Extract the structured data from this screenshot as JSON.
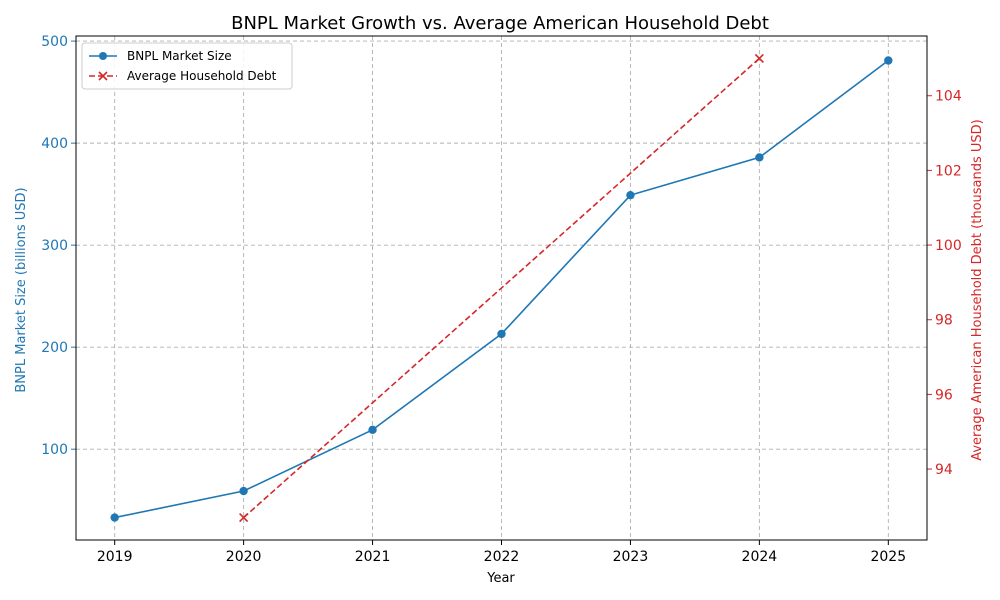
{
  "chart_data": {
    "type": "line",
    "title": "BNPL Market Growth vs. Average American Household Debt",
    "xlabel": "Year",
    "x": [
      2019,
      2020,
      2021,
      2022,
      2023,
      2024,
      2025
    ],
    "xlim": [
      2018.7,
      2025.3
    ],
    "grid": true,
    "legend_position": "top-left",
    "y_left": {
      "label": "BNPL Market Size (billions USD)",
      "color": "#1f77b4",
      "lim": [
        11,
        505
      ],
      "ticks": [
        100,
        200,
        300,
        400,
        500
      ]
    },
    "y_right": {
      "label": "Average American Household Debt (thousands USD)",
      "color": "#d62728",
      "lim": [
        92.1,
        105.6
      ],
      "ticks": [
        94,
        96,
        98,
        100,
        102,
        104
      ]
    },
    "series": [
      {
        "name": "BNPL Market Size",
        "axis": "left",
        "color": "#1f77b4",
        "linestyle": "solid",
        "marker": "circle",
        "points": [
          [
            2019,
            33
          ],
          [
            2020,
            59
          ],
          [
            2021,
            119
          ],
          [
            2022,
            213
          ],
          [
            2023,
            349
          ],
          [
            2024,
            386
          ],
          [
            2025,
            481
          ]
        ]
      },
      {
        "name": "Average Household Debt",
        "axis": "right",
        "color": "#d62728",
        "linestyle": "dashed",
        "marker": "x",
        "points": [
          [
            2020,
            92.7
          ],
          [
            2024,
            105.0
          ]
        ]
      }
    ]
  }
}
